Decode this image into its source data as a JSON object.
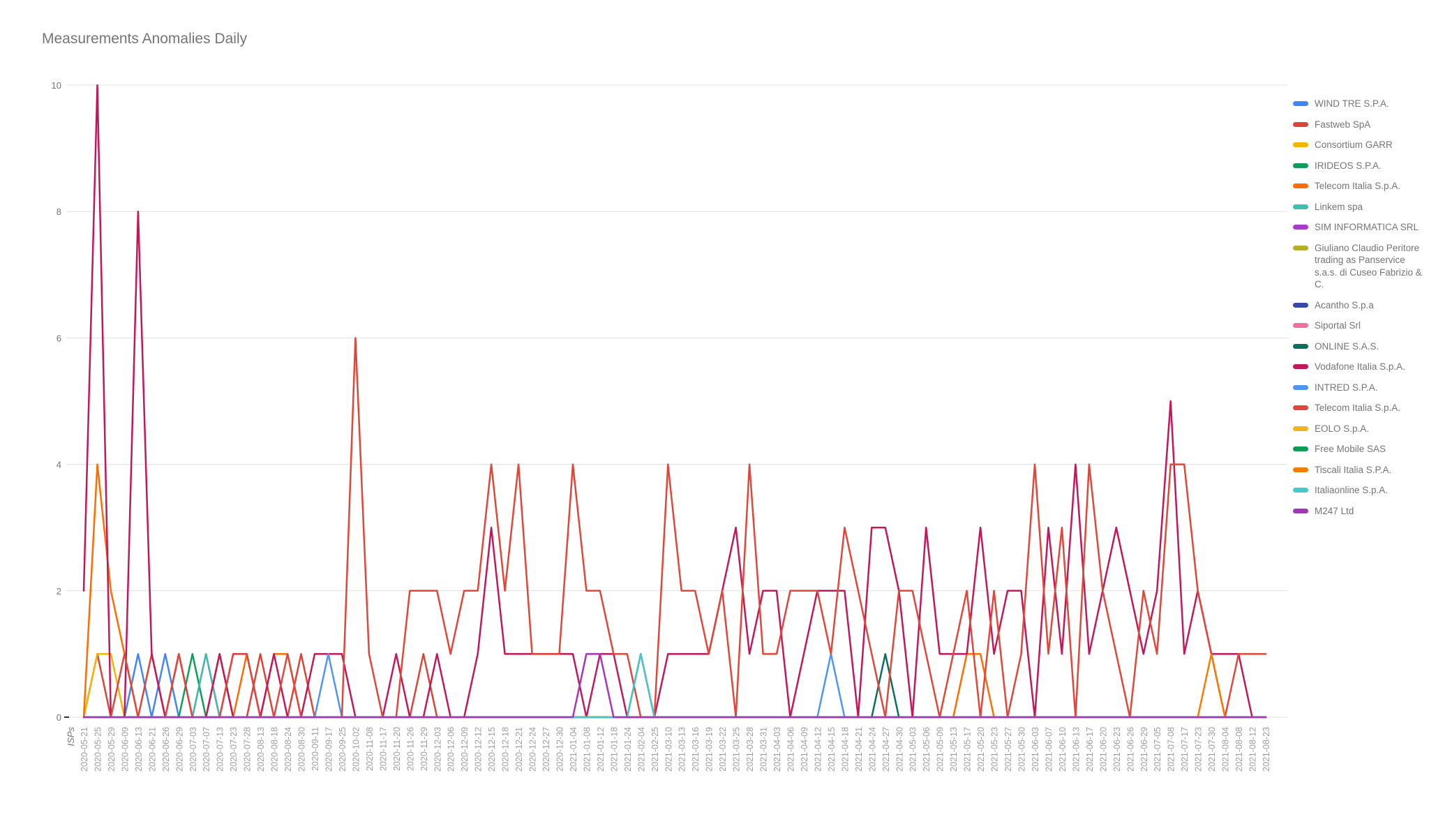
{
  "title": "Measurements Anomalies Daily",
  "axes": {
    "x": {
      "title": "ISPs"
    },
    "y": {
      "ticks": [
        0,
        2,
        4,
        6,
        8,
        10
      ]
    }
  },
  "colors": {
    "background": "#ffffff",
    "title_text": "#757575",
    "axis_label_text": "#9e9e9e",
    "y_label_text": "#757575",
    "gridline": "#e0e0e0",
    "axis_tick": "#333333"
  },
  "chart_data": {
    "type": "line",
    "title": "Measurements Anomalies Daily",
    "xlabel": "",
    "ylabel": "",
    "ylim": [
      0,
      10
    ],
    "yticks": [
      0,
      2,
      4,
      6,
      8,
      10
    ],
    "grid": true,
    "legend_position": "right",
    "x_axis_note": "ISPs",
    "default_value": 0,
    "categories": [
      "2020-05-21",
      "2020-05-25",
      "2020-05-29",
      "2020-06-09",
      "2020-06-13",
      "2020-06-21",
      "2020-06-26",
      "2020-06-29",
      "2020-07-03",
      "2020-07-07",
      "2020-07-13",
      "2020-07-23",
      "2020-07-28",
      "2020-08-13",
      "2020-08-18",
      "2020-08-24",
      "2020-08-30",
      "2020-09-11",
      "2020-09-17",
      "2020-09-25",
      "2020-10-02",
      "2020-11-08",
      "2020-11-17",
      "2020-11-20",
      "2020-11-26",
      "2020-11-29",
      "2020-12-03",
      "2020-12-06",
      "2020-12-09",
      "2020-12-12",
      "2020-12-15",
      "2020-12-18",
      "2020-12-21",
      "2020-12-24",
      "2020-12-27",
      "2020-12-30",
      "2021-01-04",
      "2021-01-08",
      "2021-01-12",
      "2021-01-18",
      "2021-01-24",
      "2021-02-04",
      "2021-02-25",
      "2021-03-10",
      "2021-03-13",
      "2021-03-16",
      "2021-03-19",
      "2021-03-22",
      "2021-03-25",
      "2021-03-28",
      "2021-03-31",
      "2021-04-03",
      "2021-04-06",
      "2021-04-09",
      "2021-04-12",
      "2021-04-15",
      "2021-04-18",
      "2021-04-21",
      "2021-04-24",
      "2021-04-27",
      "2021-04-30",
      "2021-05-03",
      "2021-05-06",
      "2021-05-09",
      "2021-05-13",
      "2021-05-17",
      "2021-05-20",
      "2021-05-23",
      "2021-05-27",
      "2021-05-30",
      "2021-06-03",
      "2021-06-07",
      "2021-06-10",
      "2021-06-13",
      "2021-06-17",
      "2021-06-20",
      "2021-06-23",
      "2021-06-26",
      "2021-06-29",
      "2021-07-05",
      "2021-07-08",
      "2021-07-17",
      "2021-07-23",
      "2021-07-30",
      "2021-08-04",
      "2021-08-08",
      "2021-08-12",
      "2021-08-23"
    ],
    "series": [
      {
        "name": "WIND TRE S.P.A.",
        "color": "#4285F4",
        "points": {
          "4": 1,
          "6": 1
        }
      },
      {
        "name": "Fastweb SpA",
        "color": "#DB4437",
        "points": {
          "1": 1,
          "5": 1,
          "9": 1,
          "13": 1,
          "16": 1,
          "25": 1
        }
      },
      {
        "name": "Consortium GARR",
        "color": "#F4B400",
        "points": {
          "1": 1,
          "2": 1
        }
      },
      {
        "name": "IRIDEOS S.P.A.",
        "color": "#0F9D58",
        "points": {
          "8": 1
        }
      },
      {
        "name": "Telecom Italia S.p.A.",
        "color": "#FF6D00",
        "points": {
          "1": 4,
          "2": 2,
          "3": 1,
          "10": 1,
          "12": 1,
          "14": 1,
          "15": 1,
          "65": 1,
          "66": 1
        }
      },
      {
        "name": "Linkem spa",
        "color": "#3FBDB4",
        "points": {
          "9": 1
        }
      },
      {
        "name": "SIM INFORMATICA SRL",
        "color": "#A93CC9",
        "points": {
          "11": 1,
          "12": 1
        }
      },
      {
        "name": "Giuliano Claudio Peritore trading as Panservice s.a.s. di Cuseo Fabrizio & C.",
        "color": "#B5AF27",
        "points": {
          "10": 1
        }
      },
      {
        "name": "Acantho S.p.a",
        "color": "#3A48A8",
        "points": {}
      },
      {
        "name": "Siportal Srl",
        "color": "#F170A0",
        "points": {}
      },
      {
        "name": "ONLINE S.A.S.",
        "color": "#0B6E5E",
        "points": {
          "59": 1
        }
      },
      {
        "name": "Vodafone Italia S.p.A.",
        "color": "#C2185B",
        "points": {
          "0": 2,
          "1": 10,
          "4": 8,
          "5": 1,
          "7": 1,
          "10": 1,
          "14": 1,
          "17": 1,
          "18": 1,
          "19": 1,
          "23": 1,
          "26": 1,
          "29": 1,
          "30": 3,
          "31": 1,
          "32": 1,
          "33": 1,
          "34": 1,
          "35": 1,
          "36": 1,
          "38": 1,
          "39": 1,
          "41": 1,
          "43": 1,
          "44": 1,
          "45": 1,
          "46": 1,
          "47": 2,
          "48": 3,
          "49": 1,
          "50": 2,
          "51": 2,
          "53": 1,
          "54": 2,
          "55": 2,
          "56": 2,
          "58": 3,
          "59": 3,
          "60": 2,
          "62": 3,
          "63": 1,
          "64": 1,
          "65": 1,
          "66": 3,
          "67": 1,
          "68": 2,
          "69": 2,
          "71": 3,
          "72": 1,
          "73": 4,
          "74": 1,
          "75": 2,
          "76": 3,
          "77": 2,
          "78": 1,
          "79": 2,
          "80": 5,
          "81": 1,
          "82": 2,
          "83": 1,
          "84": 1,
          "85": 1
        }
      },
      {
        "name": "INTRED S.P.A.",
        "color": "#4E95F5",
        "points": {
          "18": 1,
          "55": 1
        }
      },
      {
        "name": "Telecom Italia S.p.A.",
        "color": "#E0473A",
        "points": {
          "3": 1,
          "7": 1,
          "11": 1,
          "12": 1,
          "15": 1,
          "20": 6,
          "21": 1,
          "24": 2,
          "25": 2,
          "26": 2,
          "27": 1,
          "28": 2,
          "29": 2,
          "30": 4,
          "31": 2,
          "32": 4,
          "33": 1,
          "34": 1,
          "35": 1,
          "36": 4,
          "37": 2,
          "38": 2,
          "39": 1,
          "40": 1,
          "43": 4,
          "44": 2,
          "45": 2,
          "46": 1,
          "47": 2,
          "49": 4,
          "50": 1,
          "51": 1,
          "52": 2,
          "53": 2,
          "54": 2,
          "55": 1,
          "56": 3,
          "57": 2,
          "58": 1,
          "60": 2,
          "61": 2,
          "62": 1,
          "64": 1,
          "65": 2,
          "67": 2,
          "69": 1,
          "70": 4,
          "71": 1,
          "72": 3,
          "74": 4,
          "75": 2,
          "76": 1,
          "78": 2,
          "79": 1,
          "80": 4,
          "81": 4,
          "82": 2,
          "83": 1,
          "85": 1,
          "86": 1,
          "87": 1
        }
      },
      {
        "name": "EOLO S.p.A.",
        "color": "#F0B41E",
        "points": {}
      },
      {
        "name": "Free Mobile SAS",
        "color": "#0E9D57",
        "points": {}
      },
      {
        "name": "Tiscali Italia S.P.A.",
        "color": "#F57C00",
        "points": {
          "83": 1
        }
      },
      {
        "name": "Italiaonline S.p.A.",
        "color": "#44C8CE",
        "points": {
          "41": 1
        }
      },
      {
        "name": "M247 Ltd",
        "color": "#A435BC",
        "points": {
          "37": 1,
          "38": 1
        }
      }
    ]
  }
}
